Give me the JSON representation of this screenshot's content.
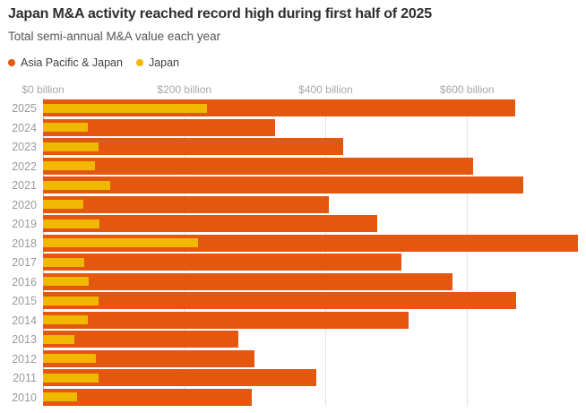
{
  "header": {
    "title": "Japan M&A activity reached record high during first half of 2025",
    "subtitle": "Total semi-annual M&A value each year"
  },
  "legend": [
    {
      "label": "Asia Pacific & Japan",
      "color": "#e4570e",
      "icon": "legend-dot-icon"
    },
    {
      "label": "Japan",
      "color": "#f0b800",
      "icon": "legend-dot-icon"
    }
  ],
  "chart_data": {
    "type": "bar",
    "orientation": "horizontal",
    "title": "Japan M&A activity reached record high during first half of 2025",
    "subtitle": "Total semi-annual M&A value each year",
    "unit": "US$ billion",
    "categories": [
      "2025",
      "2024",
      "2023",
      "2022",
      "2021",
      "2020",
      "2019",
      "2018",
      "2017",
      "2016",
      "2015",
      "2014",
      "2013",
      "2012",
      "2011",
      "2010"
    ],
    "series": [
      {
        "name": "Asia Pacific & Japan",
        "color": "#e4570e",
        "values": [
          668,
          328,
          425,
          608,
          680,
          404,
          473,
          757,
          507,
          579,
          669,
          517,
          276,
          299,
          387,
          296
        ]
      },
      {
        "name": "Japan",
        "color": "#f0b800",
        "values": [
          232,
          64,
          79,
          74,
          95,
          57,
          80,
          219,
          58,
          65,
          79,
          63,
          44,
          75,
          78,
          48
        ]
      }
    ],
    "x_axis": {
      "tick_labels": [
        "$0 billion",
        "$200 billion",
        "$400 billion",
        "$600 billion"
      ],
      "tick_values": [
        0,
        200,
        400,
        600
      ],
      "min": 0,
      "max": 768
    },
    "grid": true,
    "legend_position": "top",
    "colors": {
      "background": "#ffffff",
      "gridline": "#e2e2e2",
      "axis_line": "#bfbfbf",
      "label_gray": "#9a9a9a"
    }
  }
}
